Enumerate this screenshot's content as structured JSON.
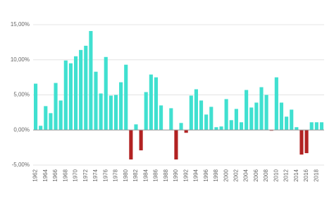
{
  "chart_data": {
    "type": "bar",
    "categories": [
      "1962",
      null,
      "1964",
      null,
      "1966",
      null,
      "1968",
      null,
      "1970",
      null,
      "1972",
      null,
      "1974",
      null,
      "1976",
      null,
      "1978",
      null,
      "1980",
      null,
      "1982",
      null,
      "1984",
      null,
      "1986",
      null,
      "1988",
      null,
      "1990",
      null,
      "1992",
      null,
      "1994",
      null,
      "1996",
      null,
      "1998",
      null,
      "2000",
      null,
      "2002",
      null,
      "2004",
      null,
      "2006",
      null,
      "2008",
      null,
      "2010",
      null,
      "2012",
      null,
      "2014",
      null,
      "2016",
      null,
      "2018",
      null
    ],
    "values": [
      6.6,
      0.6,
      3.4,
      2.4,
      6.7,
      4.2,
      9.9,
      9.5,
      10.5,
      11.4,
      12.0,
      14.1,
      8.3,
      5.2,
      10.4,
      4.9,
      5.0,
      6.8,
      9.3,
      -4.2,
      0.8,
      -2.9,
      5.4,
      7.9,
      7.5,
      3.5,
      0.0,
      3.1,
      -4.2,
      1.0,
      -0.4,
      4.9,
      5.8,
      4.2,
      2.2,
      3.3,
      0.4,
      0.5,
      4.4,
      1.4,
      3.0,
      1.1,
      5.7,
      3.2,
      3.9,
      6.1,
      5.0,
      -0.1,
      7.5,
      3.9,
      1.9,
      2.9,
      0.4,
      -3.5,
      -3.3,
      1.1,
      1.1,
      1.1
    ],
    "color": "#40e0d0",
    "negative_color": "#b22222",
    "ylim": [
      -5,
      15
    ],
    "yticks": [
      {
        "value": -5,
        "label": "-5,00%"
      },
      {
        "value": 0,
        "label": "0,00%"
      },
      {
        "value": 5,
        "label": "5,00%"
      },
      {
        "value": 10,
        "label": "10,00%"
      },
      {
        "value": 15,
        "label": "15,00%"
      }
    ],
    "grid": true
  }
}
